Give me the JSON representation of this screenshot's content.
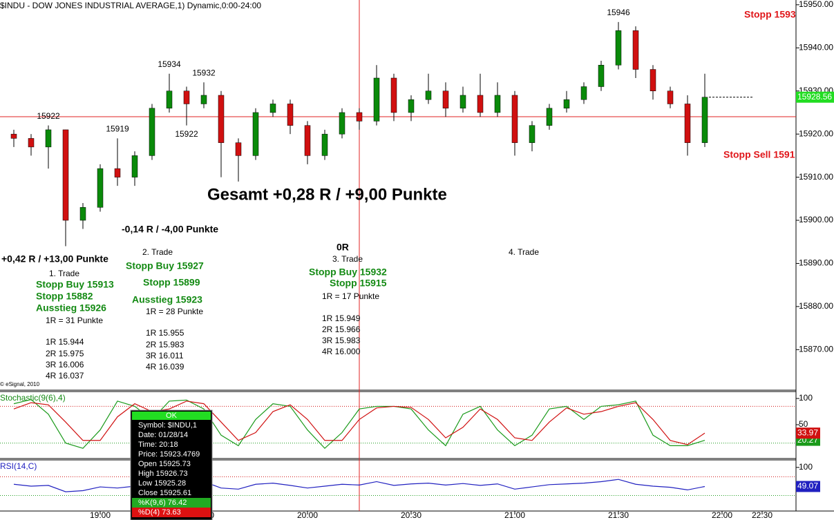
{
  "chart_data": [
    {
      "type": "candlestick",
      "title": "$INDU - DOW JONES INDUSTRIAL AVERAGE,1) Dynamic,0:00-24:00",
      "x": [
        "18:35",
        "18:40",
        "18:45",
        "18:50",
        "18:55",
        "19:00",
        "19:05",
        "19:10",
        "19:15",
        "19:20",
        "19:25",
        "19:30",
        "19:35",
        "19:40",
        "19:45",
        "19:50",
        "19:55",
        "20:00",
        "20:05",
        "20:10",
        "20:15",
        "20:20",
        "20:25",
        "20:30",
        "20:35",
        "20:40",
        "20:45",
        "20:50",
        "20:55",
        "21:00",
        "21:05",
        "21:10",
        "21:15",
        "21:20",
        "21:25",
        "21:30",
        "21:35",
        "21:40",
        "21:45",
        "21:50",
        "21:55"
      ],
      "open": [
        15920,
        15919,
        15917,
        15921,
        15900,
        15903,
        15912,
        15910,
        15915,
        15926,
        15930,
        15927,
        15929,
        15918,
        15915,
        15925,
        15927,
        15922,
        15915,
        15920,
        15925,
        15923,
        15933,
        15925,
        15928,
        15930,
        15926,
        15929,
        15925,
        15929,
        15918,
        15922,
        15926,
        15928,
        15931,
        15936,
        15944,
        15935,
        15930,
        15927,
        15918
      ],
      "high": [
        15921,
        15920,
        15922,
        15921,
        15904,
        15913,
        15919,
        15916,
        15927,
        15934,
        15931,
        15932,
        15930,
        15919,
        15926,
        15928,
        15928,
        15923,
        15921,
        15926,
        15926,
        15936,
        15934,
        15929,
        15934,
        15932,
        15931,
        15934,
        15932,
        15930,
        15923,
        15927,
        15930,
        15932,
        15937,
        15946,
        15945,
        15936,
        15931,
        15929,
        15934
      ],
      "low": [
        15917,
        15915,
        15912,
        15894,
        15898,
        15902,
        15908,
        15908,
        15914,
        15925,
        15922,
        15926,
        15910,
        15909,
        15914,
        15924,
        15920,
        15913,
        15914,
        15919,
        15921,
        15922,
        15923,
        15923,
        15927,
        15924,
        15925,
        15924,
        15924,
        15915,
        15916,
        15921,
        15925,
        15927,
        15930,
        15935,
        15933,
        15928,
        15926,
        15915,
        15917
      ],
      "close": [
        15919,
        15917,
        15921,
        15900,
        15903,
        15912,
        15910,
        15915,
        15926,
        15930,
        15927,
        15929,
        15918,
        15915,
        15925,
        15927,
        15922,
        15915,
        15920,
        15925,
        15923,
        15933,
        15925,
        15928,
        15930,
        15926,
        15929,
        15925,
        15929,
        15918,
        15922,
        15926,
        15928,
        15931,
        15936,
        15944,
        15935,
        15930,
        15927,
        15918,
        15928.56
      ],
      "up_color": "#0a8a0a",
      "down_color": "#d01010",
      "xlim": [
        "18:31",
        "22:21"
      ],
      "xticks": [
        "19:00",
        "19:30",
        "20:00",
        "20:30",
        "21:00",
        "21:30",
        "22:00",
        "22:30"
      ],
      "ylim": [
        15860.6,
        15951.1
      ],
      "yticks": [
        {
          "value": 15870,
          "label": "15870.00"
        },
        {
          "value": 15880,
          "label": "15880.00"
        },
        {
          "value": 15890,
          "label": "15890.00"
        },
        {
          "value": 15900,
          "label": "15900.00"
        },
        {
          "value": 15910,
          "label": "15910.00"
        },
        {
          "value": 15920,
          "label": "15920.00"
        },
        {
          "value": 15930,
          "label": "15930.00"
        },
        {
          "value": 15940,
          "label": "15940.00"
        },
        {
          "value": 15950,
          "label": "15950.00"
        }
      ]
    },
    {
      "type": "line",
      "title": "Stochastic(9(6),4)",
      "ylim": [
        -13.2,
        113.2
      ],
      "yticks": [
        50,
        100
      ],
      "levels": [
        15,
        85
      ],
      "level_colors": [
        "#1a9a1a",
        "#d01010"
      ],
      "series": [
        {
          "color": "#1a9a1a",
          "values": [
            90,
            98,
            70,
            15,
            5,
            40,
            95,
            85,
            60,
            95,
            97,
            80,
            30,
            10,
            60,
            90,
            85,
            40,
            5,
            35,
            80,
            85,
            85,
            80,
            40,
            10,
            70,
            85,
            40,
            10,
            30,
            80,
            85,
            60,
            85,
            88,
            95,
            30,
            10,
            10,
            20.27
          ]
        },
        {
          "color": "#d01010",
          "values": [
            80,
            92,
            88,
            55,
            20,
            20,
            65,
            90,
            75,
            80,
            95,
            90,
            55,
            20,
            35,
            75,
            88,
            60,
            20,
            20,
            60,
            82,
            85,
            83,
            60,
            25,
            45,
            80,
            60,
            25,
            20,
            55,
            82,
            70,
            75,
            85,
            92,
            60,
            20,
            12,
            33.97
          ]
        }
      ]
    },
    {
      "type": "line",
      "title": "RSI(14,C)",
      "ylim": [
        -16.4,
        120
      ],
      "yticks": [
        100
      ],
      "levels": [
        25,
        75
      ],
      "level_colors": [
        "#1a9a1a",
        "#d01010"
      ],
      "series": [
        {
          "color": "#2020c0",
          "values": [
            55,
            50,
            52,
            35,
            38,
            48,
            45,
            50,
            60,
            65,
            60,
            62,
            45,
            42,
            55,
            58,
            52,
            45,
            50,
            55,
            53,
            62,
            52,
            56,
            58,
            53,
            57,
            52,
            56,
            42,
            48,
            54,
            56,
            58,
            62,
            68,
            55,
            50,
            47,
            40,
            49.07
          ]
        }
      ]
    }
  ],
  "annotations": [
    "Gesamt +0,28 R / +9,00 Punkte",
    "-0,14 R / -4,00 Punkte",
    "+0,42 R / +13,00 Punkte",
    "1. Trade",
    "Stopp Buy 15913",
    "Stopp 15882",
    "Ausstieg 15926",
    "1R = 31 Punkte",
    "1R 15.944",
    "2R 15.975",
    "3R 16.006",
    "4R 16.037",
    "2. Trade",
    "Stopp Buy 15927",
    "Stopp 15899",
    "Ausstieg 15923",
    "1R = 28 Punkte",
    "1R 15.955",
    "2R 15.983",
    "3R 16.011",
    "4R 16.039",
    "0R",
    "3. Trade",
    "Stopp Buy 15932",
    "Stopp 15915",
    "1R = 17 Punkte",
    "1R 15.949",
    "2R 15.966",
    "3R 15.983",
    "4R 16.000",
    "4. Trade",
    "Stopp 1593",
    "Stopp Sell 1591",
    "© eSignal, 2010"
  ],
  "data_window": {
    "title": "OK",
    "rows": [
      "Symbol: $INDU,1",
      "Date: 01/28/14",
      "Time: 20:18",
      "Price: 15923.4769",
      "Open 15925.73",
      "High 15926.73",
      "Low 15925.28",
      "Close 15925.61",
      "%K(9,6) 76.42",
      "%D(4) 73.63"
    ]
  }
}
